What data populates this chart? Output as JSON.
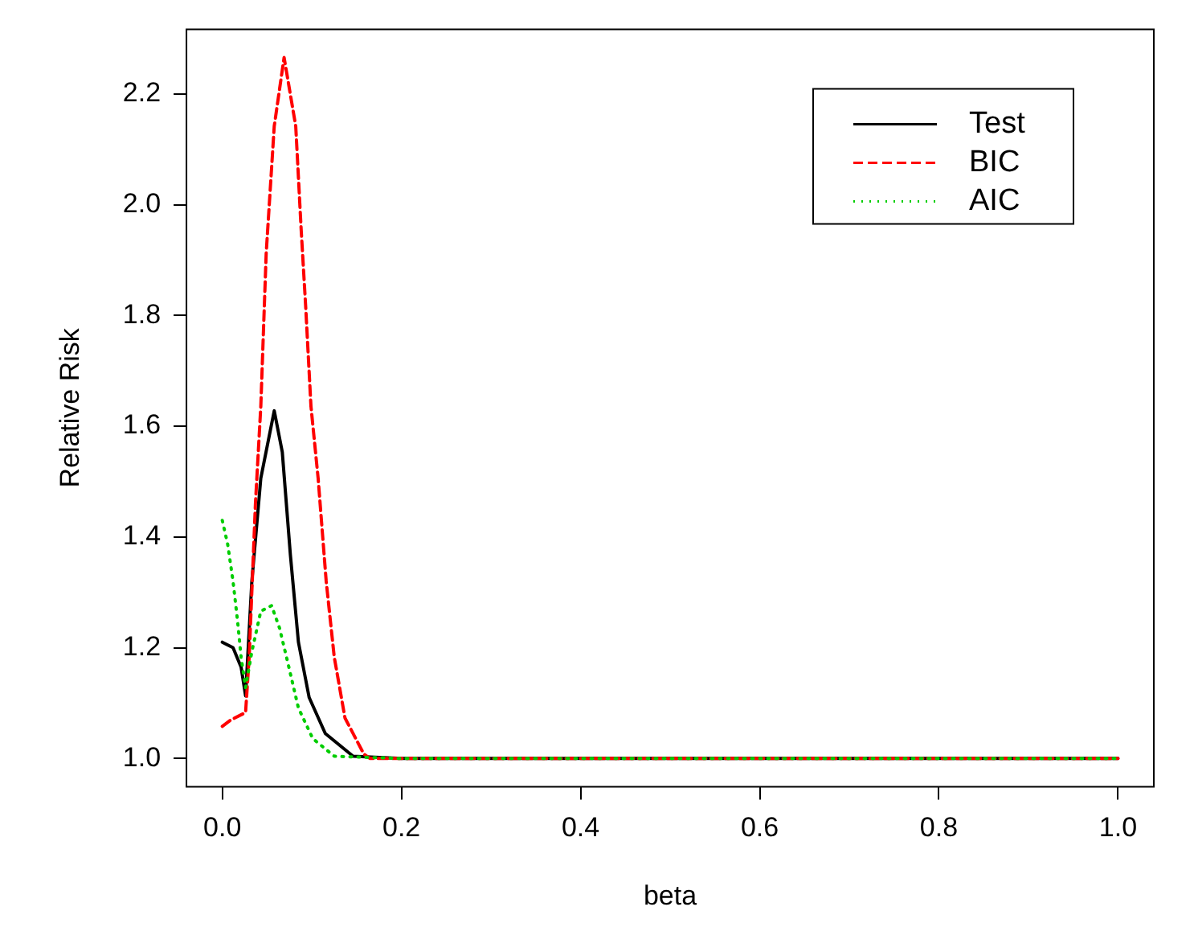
{
  "chart_data": {
    "type": "line",
    "xlabel": "beta",
    "ylabel": "Relative Risk",
    "xlim": [
      -0.04,
      1.04
    ],
    "ylim": [
      0.949,
      2.317
    ],
    "xticks": [
      {
        "value": 0,
        "label": "0.0"
      },
      {
        "value": 0.2,
        "label": "0.2"
      },
      {
        "value": 0.4,
        "label": "0.4"
      },
      {
        "value": 0.6,
        "label": "0.6"
      },
      {
        "value": 0.8,
        "label": "0.8"
      },
      {
        "value": 1,
        "label": "1.0"
      }
    ],
    "yticks": [
      {
        "value": 1,
        "label": "1.0"
      },
      {
        "value": 1.2,
        "label": "1.2"
      },
      {
        "value": 1.4,
        "label": "1.4"
      },
      {
        "value": 1.6,
        "label": "1.6"
      },
      {
        "value": 1.8,
        "label": "1.8"
      },
      {
        "value": 2,
        "label": "2.0"
      },
      {
        "value": 2.2,
        "label": "2.2"
      }
    ],
    "grid": false,
    "legend": "top right",
    "marker": "none",
    "series": [
      {
        "name": "Test",
        "color": "#000000",
        "line_style": "solid",
        "x": [
          0,
          0.012,
          0.021,
          0.026,
          0.033,
          0.043,
          0.058,
          0.067,
          0.076,
          0.085,
          0.097,
          0.115,
          0.146,
          0.2,
          1
        ],
        "values": [
          1.21,
          1.2,
          1.165,
          1.113,
          1.32,
          1.506,
          1.628,
          1.553,
          1.368,
          1.21,
          1.11,
          1.045,
          1.004,
          1,
          1
        ]
      },
      {
        "name": "BIC",
        "color": "#ff0000",
        "line_style": "dashed",
        "x": [
          0,
          0.009,
          0.026,
          0.03,
          0.037,
          0.043,
          0.049,
          0.058,
          0.069,
          0.082,
          0.088,
          0.093,
          0.099,
          0.107,
          0.116,
          0.125,
          0.137,
          0.158,
          0.165,
          0.2,
          1
        ],
        "values": [
          1.058,
          1.069,
          1.083,
          1.183,
          1.46,
          1.636,
          1.912,
          2.142,
          2.266,
          2.142,
          1.957,
          1.819,
          1.636,
          1.506,
          1.32,
          1.183,
          1.073,
          1.008,
          1,
          1,
          1
        ]
      },
      {
        "name": "AIC",
        "color": "#00cd00",
        "line_style": "dotted",
        "x": [
          0,
          0.006,
          0.012,
          0.017,
          0.021,
          0.026,
          0.033,
          0.043,
          0.055,
          0.064,
          0.073,
          0.085,
          0.101,
          0.125,
          0.2,
          1
        ],
        "values": [
          1.43,
          1.387,
          1.32,
          1.249,
          1.183,
          1.128,
          1.193,
          1.266,
          1.276,
          1.235,
          1.174,
          1.091,
          1.036,
          1.004,
          1,
          1
        ]
      }
    ]
  }
}
